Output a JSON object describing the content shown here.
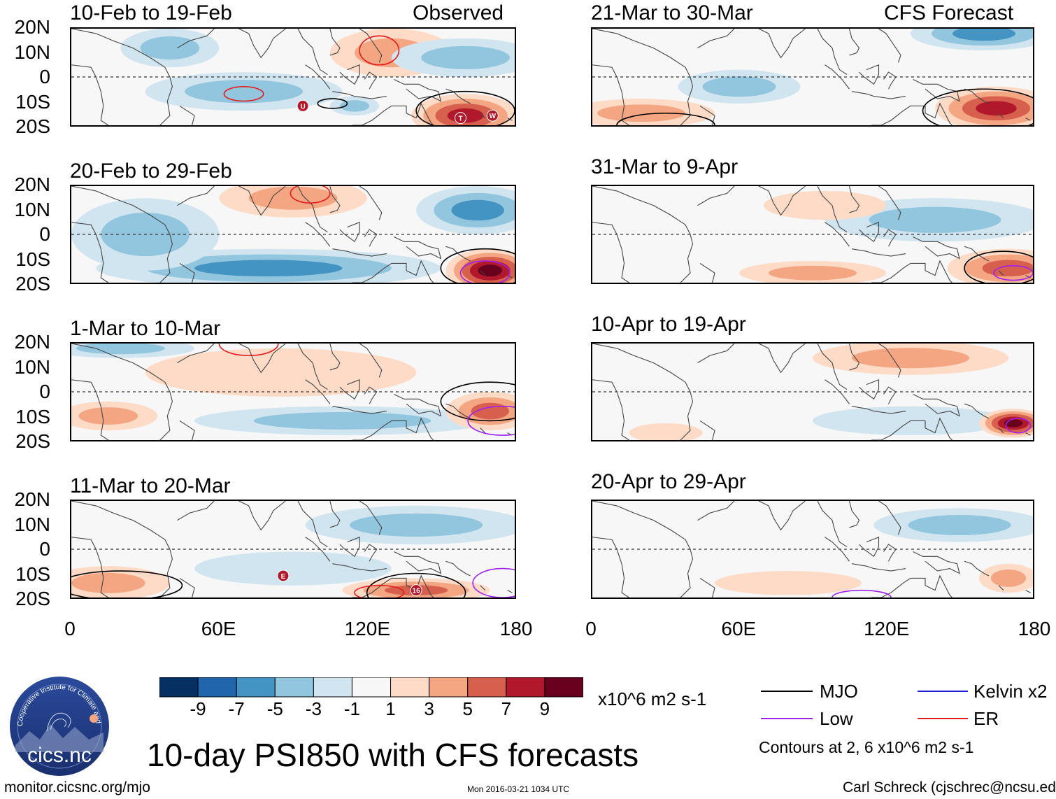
{
  "figure": {
    "main_title": "10-day PSI850 with CFS forecasts",
    "url": "monitor.cicsnc.org/mjo",
    "timestamp": "Mon 2016-03-21 1034 UTC",
    "author": "Carl Schreck (cjschrec@ncsu.edu)",
    "units": "x10^6 m2 s-1",
    "logo_text": "cics.nc",
    "logo_ring_text": "Cooperative Institute for Climate and Satellites",
    "observed_label": "Observed",
    "forecast_label": "CFS Forecast"
  },
  "legend": {
    "items": [
      {
        "label": "MJO",
        "color": "#000000"
      },
      {
        "label": "Kelvin x2",
        "color": "#1f1fd6"
      },
      {
        "label": "Low",
        "color": "#a020f0"
      },
      {
        "label": "ER",
        "color": "#e41a1c"
      }
    ],
    "contour_note": "Contours at 2, 6 x10^6 m2 s-1"
  },
  "chart_data": {
    "type": "heatmap",
    "variable": "850-hPa streamfunction anomaly (PSI850)",
    "ylabel_ticks": [
      "20N",
      "10N",
      "0",
      "10S",
      "20S"
    ],
    "xlabel_ticks": [
      "0",
      "60E",
      "120E",
      "180"
    ],
    "x_range": [
      0,
      180
    ],
    "y_range": [
      -20,
      20
    ],
    "colorbar": {
      "ticks": [
        "-9",
        "-7",
        "-5",
        "-3",
        "-1",
        "1",
        "3",
        "5",
        "7",
        "9"
      ],
      "colors": [
        "#053061",
        "#2166ac",
        "#4393c3",
        "#92c5de",
        "#d1e5f0",
        "#f7f7f7",
        "#fddbc7",
        "#f4a582",
        "#d6604d",
        "#b2182b",
        "#67001f"
      ]
    },
    "panels": [
      {
        "period": "10-Feb to 19-Feb",
        "column": "observed",
        "blobs": [
          {
            "lon": 40,
            "lat": 12,
            "rx": 20,
            "ry": 8,
            "v": -3
          },
          {
            "lon": 70,
            "lat": -6,
            "rx": 40,
            "ry": 8,
            "v": -3
          },
          {
            "lon": 130,
            "lat": 10,
            "rx": 25,
            "ry": 10,
            "v": 3
          },
          {
            "lon": 160,
            "lat": -16,
            "rx": 22,
            "ry": 9,
            "v": 7
          },
          {
            "lon": 160,
            "lat": 8,
            "rx": 30,
            "ry": 8,
            "v": -3
          },
          {
            "lon": 115,
            "lat": -12,
            "rx": 10,
            "ry": 4,
            "v": -3
          }
        ],
        "contours": [
          {
            "lon": 125,
            "lat": 11,
            "rx": 8,
            "ry": 6,
            "kind": "ER"
          },
          {
            "lon": 70,
            "lat": -7,
            "rx": 8,
            "ry": 3,
            "kind": "ER"
          },
          {
            "lon": 160,
            "lat": -14,
            "rx": 20,
            "ry": 8,
            "kind": "MJO"
          },
          {
            "lon": 106,
            "lat": -11,
            "rx": 6,
            "ry": 2,
            "kind": "MJO"
          }
        ],
        "markers": [
          {
            "lon": 94,
            "lat": -12,
            "label": "U"
          },
          {
            "lon": 158,
            "lat": -17,
            "label": "T"
          },
          {
            "lon": 171,
            "lat": -16,
            "label": "W"
          }
        ]
      },
      {
        "period": "21-Mar to 30-Mar",
        "column": "forecast",
        "blobs": [
          {
            "lon": 160,
            "lat": 18,
            "rx": 30,
            "ry": 7,
            "v": -5
          },
          {
            "lon": 60,
            "lat": -4,
            "rx": 25,
            "ry": 7,
            "v": -3
          },
          {
            "lon": 165,
            "lat": -13,
            "rx": 25,
            "ry": 9,
            "v": 7
          },
          {
            "lon": 20,
            "lat": -15,
            "rx": 30,
            "ry": 6,
            "v": 3
          }
        ],
        "contours": [
          {
            "lon": 160,
            "lat": -14,
            "rx": 25,
            "ry": 9,
            "kind": "MJO"
          },
          {
            "lon": 30,
            "lat": -20,
            "rx": 20,
            "ry": 5,
            "kind": "MJO"
          }
        ],
        "markers": []
      },
      {
        "period": "20-Feb to 29-Feb",
        "column": "observed",
        "blobs": [
          {
            "lon": 90,
            "lat": 15,
            "rx": 30,
            "ry": 8,
            "v": 3
          },
          {
            "lon": 165,
            "lat": 10,
            "rx": 25,
            "ry": 10,
            "v": -5
          },
          {
            "lon": 80,
            "lat": -14,
            "rx": 70,
            "ry": 8,
            "v": -5
          },
          {
            "lon": 170,
            "lat": -15,
            "rx": 18,
            "ry": 9,
            "v": 9
          },
          {
            "lon": 30,
            "lat": 0,
            "rx": 30,
            "ry": 15,
            "v": -3
          }
        ],
        "contours": [
          {
            "lon": 97,
            "lat": 17,
            "rx": 8,
            "ry": 4,
            "kind": "ER"
          },
          {
            "lon": 168,
            "lat": -14,
            "rx": 18,
            "ry": 8,
            "kind": "MJO"
          },
          {
            "lon": 168,
            "lat": -16,
            "rx": 10,
            "ry": 5,
            "kind": "Low"
          }
        ],
        "markers": []
      },
      {
        "period": "31-Mar to 9-Apr",
        "column": "forecast",
        "blobs": [
          {
            "lon": 140,
            "lat": 6,
            "rx": 45,
            "ry": 9,
            "v": -3
          },
          {
            "lon": 170,
            "lat": -14,
            "rx": 25,
            "ry": 8,
            "v": 5
          },
          {
            "lon": 90,
            "lat": -16,
            "rx": 30,
            "ry": 5,
            "v": 3
          },
          {
            "lon": 95,
            "lat": 12,
            "rx": 25,
            "ry": 6,
            "v": 1
          }
        ],
        "contours": [
          {
            "lon": 168,
            "lat": -14,
            "rx": 16,
            "ry": 7,
            "kind": "MJO"
          },
          {
            "lon": 172,
            "lat": -16,
            "rx": 8,
            "ry": 3,
            "kind": "Low"
          }
        ],
        "markers": []
      },
      {
        "period": "1-Mar to 10-Mar",
        "column": "observed",
        "blobs": [
          {
            "lon": 85,
            "lat": 8,
            "rx": 55,
            "ry": 10,
            "v": 1
          },
          {
            "lon": 110,
            "lat": -12,
            "rx": 60,
            "ry": 6,
            "v": -3
          },
          {
            "lon": 170,
            "lat": -8,
            "rx": 18,
            "ry": 8,
            "v": 5
          },
          {
            "lon": 15,
            "lat": -10,
            "rx": 20,
            "ry": 6,
            "v": 3
          },
          {
            "lon": 20,
            "lat": 18,
            "rx": 30,
            "ry": 4,
            "v": -3
          }
        ],
        "contours": [
          {
            "lon": 170,
            "lat": -4,
            "rx": 20,
            "ry": 8,
            "kind": "MJO"
          },
          {
            "lon": 72,
            "lat": 20,
            "rx": 12,
            "ry": 5,
            "kind": "ER"
          },
          {
            "lon": 175,
            "lat": -12,
            "rx": 14,
            "ry": 6,
            "kind": "Low"
          }
        ],
        "markers": []
      },
      {
        "period": "10-Apr to 19-Apr",
        "column": "forecast",
        "blobs": [
          {
            "lon": 130,
            "lat": 14,
            "rx": 40,
            "ry": 7,
            "v": 3
          },
          {
            "lon": 130,
            "lat": -12,
            "rx": 40,
            "ry": 6,
            "v": -1
          },
          {
            "lon": 172,
            "lat": -13,
            "rx": 14,
            "ry": 6,
            "v": 9
          },
          {
            "lon": 30,
            "lat": -17,
            "rx": 15,
            "ry": 4,
            "v": 1
          }
        ],
        "contours": [
          {
            "lon": 174,
            "lat": -14,
            "rx": 5,
            "ry": 3,
            "kind": "Low"
          }
        ],
        "markers": []
      },
      {
        "period": "11-Mar to 20-Mar",
        "column": "observed",
        "blobs": [
          {
            "lon": 140,
            "lat": 10,
            "rx": 45,
            "ry": 8,
            "v": -3
          },
          {
            "lon": 90,
            "lat": -8,
            "rx": 40,
            "ry": 7,
            "v": -1
          },
          {
            "lon": 140,
            "lat": -17,
            "rx": 30,
            "ry": 5,
            "v": 5
          },
          {
            "lon": 15,
            "lat": -14,
            "rx": 25,
            "ry": 7,
            "v": 3
          }
        ],
        "contours": [
          {
            "lon": 140,
            "lat": -18,
            "rx": 20,
            "ry": 8,
            "kind": "MJO"
          },
          {
            "lon": 20,
            "lat": -15,
            "rx": 25,
            "ry": 6,
            "kind": "MJO"
          },
          {
            "lon": 125,
            "lat": -18,
            "rx": 10,
            "ry": 3,
            "kind": "ER"
          },
          {
            "lon": 175,
            "lat": -14,
            "rx": 12,
            "ry": 6,
            "kind": "Low"
          }
        ],
        "markers": [
          {
            "lon": 86,
            "lat": -11,
            "label": "E"
          },
          {
            "lon": 140,
            "lat": -17,
            "label": "16"
          }
        ]
      },
      {
        "period": "20-Apr to 29-Apr",
        "column": "forecast",
        "blobs": [
          {
            "lon": 150,
            "lat": 10,
            "rx": 35,
            "ry": 7,
            "v": -3
          },
          {
            "lon": 80,
            "lat": -14,
            "rx": 30,
            "ry": 5,
            "v": 1
          },
          {
            "lon": 170,
            "lat": -12,
            "rx": 12,
            "ry": 6,
            "v": 3
          }
        ],
        "contours": [
          {
            "lon": 110,
            "lat": -20,
            "rx": 12,
            "ry": 3,
            "kind": "Low"
          }
        ],
        "markers": []
      }
    ]
  }
}
